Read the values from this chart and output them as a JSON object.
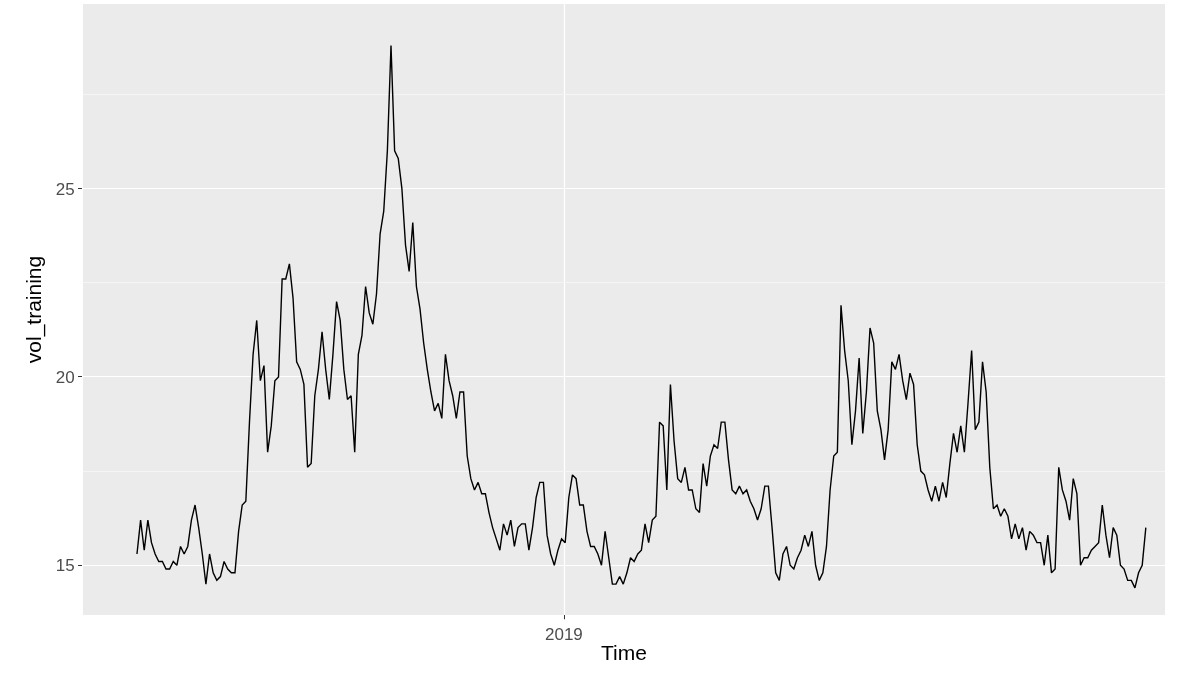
{
  "chart_data": {
    "type": "line",
    "xlabel": "Time",
    "ylabel": "vol_training",
    "annotations": [
      "2019"
    ],
    "categories": [
      null,
      null,
      null,
      null,
      null,
      null,
      null,
      null,
      null,
      null,
      null,
      null,
      null,
      null,
      null,
      null,
      null,
      null,
      null,
      null,
      null,
      null,
      null,
      null,
      null,
      null,
      null,
      null,
      null,
      null,
      null,
      null,
      null,
      null,
      null,
      null,
      null,
      null,
      null,
      null,
      null,
      null,
      null,
      null,
      null,
      null,
      null,
      null,
      null,
      null,
      null,
      null,
      null,
      null,
      null,
      null,
      null,
      null,
      null,
      null,
      null,
      null,
      null,
      null,
      null,
      null,
      null,
      null,
      null,
      null,
      null,
      null,
      null,
      null,
      null,
      null,
      null,
      null,
      null,
      null,
      null,
      null,
      null,
      null,
      null,
      null,
      null,
      null,
      null,
      null,
      null,
      null,
      null,
      null,
      null,
      null,
      null,
      null,
      null,
      null,
      null,
      null,
      null,
      null,
      null,
      null,
      null,
      null,
      null,
      null,
      null,
      null,
      null,
      null,
      null,
      null,
      null,
      null,
      null,
      null,
      null,
      null,
      null,
      null,
      null,
      null,
      null,
      null,
      null,
      null,
      null,
      null,
      null,
      null,
      null,
      null,
      null,
      null,
      null,
      null,
      null,
      null,
      null,
      null,
      null,
      null,
      null,
      null,
      null,
      null,
      null,
      null,
      null,
      null,
      null,
      null,
      null,
      null,
      null,
      null,
      null,
      null,
      null,
      null,
      null,
      null,
      null,
      null,
      null,
      null,
      null,
      null,
      null,
      null,
      null,
      null,
      null,
      null,
      null,
      null,
      null,
      null,
      null,
      null,
      null,
      null,
      null,
      null,
      null,
      null,
      null,
      null,
      null,
      null,
      null,
      null,
      null,
      null,
      null,
      null,
      null,
      null,
      null,
      null,
      null,
      null,
      null,
      null,
      null,
      null,
      null,
      null,
      null,
      null,
      null,
      null,
      null,
      null,
      null,
      null,
      null,
      null,
      null,
      null,
      null,
      null,
      null,
      null,
      null,
      null,
      null,
      null,
      null,
      null,
      null,
      null,
      null,
      null,
      null,
      null,
      null,
      null,
      null,
      null,
      null,
      null,
      null,
      null,
      null,
      null,
      null,
      null,
      null,
      null,
      null,
      null,
      null,
      null,
      null,
      null,
      null,
      null,
      null,
      null,
      null,
      null,
      null,
      null,
      null,
      null,
      null,
      null,
      null,
      null,
      null,
      null,
      null,
      null,
      null
    ],
    "series": [
      {
        "color": "#000000",
        "values": [
          15.3,
          16.2,
          15.4,
          16.2,
          15.6,
          15.3,
          15.1,
          15.1,
          14.9,
          14.9,
          15.1,
          15.0,
          15.5,
          15.3,
          15.5,
          16.2,
          16.6,
          16.0,
          15.3,
          14.5,
          15.3,
          14.8,
          14.6,
          14.7,
          15.1,
          14.9,
          14.8,
          14.8,
          15.9,
          16.6,
          16.7,
          18.8,
          20.6,
          21.5,
          19.9,
          20.3,
          18.0,
          18.7,
          19.9,
          20.0,
          22.6,
          22.6,
          23.0,
          22.1,
          20.4,
          20.2,
          19.8,
          17.6,
          17.7,
          19.5,
          20.2,
          21.2,
          20.2,
          19.4,
          20.6,
          22.0,
          21.5,
          20.2,
          19.4,
          19.5,
          18.0,
          20.6,
          21.1,
          22.4,
          21.7,
          21.4,
          22.2,
          23.8,
          24.4,
          26.0,
          28.8,
          26.0,
          25.8,
          25.0,
          23.5,
          22.8,
          24.1,
          22.4,
          21.8,
          20.9,
          20.2,
          19.6,
          19.1,
          19.3,
          18.9,
          20.6,
          19.9,
          19.5,
          18.9,
          19.6,
          19.6,
          17.9,
          17.3,
          17.0,
          17.2,
          16.9,
          16.9,
          16.4,
          16.0,
          15.7,
          15.4,
          16.1,
          15.8,
          16.2,
          15.5,
          16.0,
          16.1,
          16.1,
          15.4,
          16.0,
          16.8,
          17.2,
          17.2,
          15.8,
          15.3,
          15.0,
          15.4,
          15.7,
          15.6,
          16.8,
          17.4,
          17.3,
          16.6,
          16.6,
          15.9,
          15.5,
          15.5,
          15.3,
          15.0,
          15.9,
          15.2,
          14.5,
          14.5,
          14.7,
          14.5,
          14.8,
          15.2,
          15.1,
          15.3,
          15.4,
          16.1,
          15.6,
          16.2,
          16.3,
          18.8,
          18.7,
          17.0,
          19.8,
          18.3,
          17.3,
          17.2,
          17.6,
          17.0,
          17.0,
          16.5,
          16.4,
          17.7,
          17.1,
          17.9,
          18.2,
          18.1,
          18.8,
          18.8,
          17.8,
          17.0,
          16.9,
          17.1,
          16.9,
          17.0,
          16.7,
          16.5,
          16.2,
          16.5,
          17.1,
          17.1,
          16.0,
          14.8,
          14.6,
          15.3,
          15.5,
          15.0,
          14.9,
          15.2,
          15.4,
          15.8,
          15.5,
          15.9,
          15.0,
          14.6,
          14.8,
          15.5,
          17.0,
          17.9,
          18.0,
          21.9,
          20.7,
          19.9,
          18.2,
          19.1,
          20.5,
          18.5,
          19.6,
          21.3,
          20.9,
          19.1,
          18.6,
          17.8,
          18.6,
          20.4,
          20.2,
          20.6,
          19.9,
          19.4,
          20.1,
          19.8,
          18.2,
          17.5,
          17.4,
          17.0,
          16.7,
          17.1,
          16.7,
          17.2,
          16.8,
          17.7,
          18.5,
          18.0,
          18.7,
          18.0,
          19.3,
          20.7,
          18.6,
          18.8,
          20.4,
          19.6,
          17.6,
          16.5,
          16.6,
          16.3,
          16.5,
          16.3,
          15.7,
          16.1,
          15.7,
          16.0,
          15.4,
          15.9,
          15.8,
          15.6,
          15.6,
          15.0,
          15.8,
          14.8,
          14.9,
          17.6,
          17.0,
          16.7,
          16.2,
          17.3,
          16.9,
          15.0,
          15.2,
          15.2,
          15.4,
          15.5,
          15.6,
          16.6,
          15.8,
          15.2,
          16.0,
          15.8,
          15.0,
          14.9,
          14.6,
          14.6,
          14.4,
          14.8,
          15.0,
          16.0
        ]
      }
    ],
    "ylim": [
      13.68,
      29.9
    ],
    "yticks": [
      15,
      {
        "value": 17.5,
        "label": null
      },
      20,
      {
        "value": 22.5,
        "label": null
      },
      25,
      {
        "value": 27.5,
        "label": null
      }
    ],
    "grid": true,
    "marker": "none",
    "line_style": "solid"
  }
}
